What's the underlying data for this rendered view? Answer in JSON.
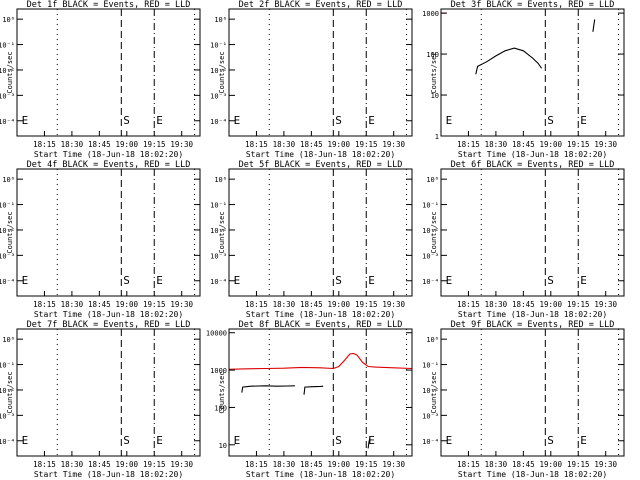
{
  "colors": {
    "events": "#000000",
    "lld": "#dd0000",
    "background": "#ffffff",
    "axis": "#000000"
  },
  "figure": {
    "start_time_label": "Start Time (18-Jun-18 18:02:20)"
  },
  "chart_data": [
    {
      "type": "line",
      "title": "Det 1f BLACK = Events, RED = LLD",
      "xlabel": "Start Time (18-Jun-18 18:02:20)",
      "ylabel": "Counts/sec",
      "y_scale": "log",
      "y_tick_labels": [
        "10⁻⁴",
        "10⁻³",
        "10⁻²",
        "10⁻¹",
        "10⁰"
      ],
      "ylim": [
        -4.6,
        0.4
      ],
      "x_tick_labels": [
        "18:15",
        "18:30",
        "18:45",
        "19:00",
        "19:15",
        "19:30"
      ],
      "x_ticks_min": [
        15,
        30,
        45,
        60,
        75,
        90
      ],
      "xlim": [
        0,
        100
      ],
      "markers": [
        {
          "t": 2,
          "style": "none",
          "text": "E"
        },
        {
          "t": 22,
          "style": "dot"
        },
        {
          "t": 57,
          "style": "dash",
          "text": "S"
        },
        {
          "t": 75,
          "style": "dashdot",
          "text": "E"
        },
        {
          "t": 97,
          "style": "dot"
        }
      ],
      "series": []
    },
    {
      "type": "line",
      "title": "Det 2f BLACK = Events, RED = LLD",
      "xlabel": "Start Time (18-Jun-18 18:02:20)",
      "ylabel": "Counts/sec",
      "y_scale": "log",
      "y_tick_labels": [
        "10⁻⁴",
        "10⁻³",
        "10⁻²",
        "10⁻¹",
        "10⁰"
      ],
      "ylim": [
        -4.6,
        0.4
      ],
      "x_tick_labels": [
        "18:15",
        "18:30",
        "18:45",
        "19:00",
        "19:15",
        "19:30"
      ],
      "x_ticks_min": [
        15,
        30,
        45,
        60,
        75,
        90
      ],
      "xlim": [
        0,
        100
      ],
      "markers": [
        {
          "t": 2,
          "style": "none",
          "text": "E"
        },
        {
          "t": 22,
          "style": "dot"
        },
        {
          "t": 57,
          "style": "dash",
          "text": "S"
        },
        {
          "t": 75,
          "style": "dashdot",
          "text": "E"
        },
        {
          "t": 97,
          "style": "dot"
        }
      ],
      "series": []
    },
    {
      "type": "line",
      "title": "Det 3f BLACK = Events, RED = LLD",
      "xlabel": "Start Time (18-Jun-18 18:02:20)",
      "ylabel": "Counts/sec",
      "y_scale": "log",
      "y_tick_labels": [
        "1000",
        "100",
        "10",
        "1"
      ],
      "ylim": [
        0,
        3.1
      ],
      "x_tick_labels": [
        "18:15",
        "18:30",
        "18:45",
        "19:00",
        "19:15",
        "19:30"
      ],
      "x_ticks_min": [
        15,
        30,
        45,
        60,
        75,
        90
      ],
      "xlim": [
        0,
        100
      ],
      "markers": [
        {
          "t": 2,
          "style": "none",
          "text": "E"
        },
        {
          "t": 22,
          "style": "dot"
        },
        {
          "t": 57,
          "style": "dash",
          "text": "S"
        },
        {
          "t": 75,
          "style": "dashdot",
          "text": "E"
        },
        {
          "t": 97,
          "style": "dot"
        }
      ],
      "series": [
        {
          "color": "black",
          "x": [
            19,
            20,
            25,
            30,
            35,
            40,
            45,
            50,
            53,
            55
          ],
          "y": [
            32,
            50,
            65,
            90,
            120,
            140,
            120,
            80,
            60,
            45
          ]
        },
        {
          "color": "black",
          "x": [
            83,
            83.5,
            84
          ],
          "y": [
            350,
            500,
            700
          ]
        },
        {
          "color": "red",
          "x": [
            0,
            2.5
          ],
          "y": [
            1000,
            1000
          ]
        }
      ]
    },
    {
      "type": "line",
      "title": "Det 4f BLACK = Events, RED = LLD",
      "xlabel": "Start Time (18-Jun-18 18:02:20)",
      "ylabel": "Counts/sec",
      "y_scale": "log",
      "y_tick_labels": [
        "10⁻⁴",
        "10⁻³",
        "10⁻²",
        "10⁻¹",
        "10⁰"
      ],
      "ylim": [
        -4.6,
        0.4
      ],
      "x_tick_labels": [
        "18:15",
        "18:30",
        "18:45",
        "19:00",
        "19:15",
        "19:30"
      ],
      "x_ticks_min": [
        15,
        30,
        45,
        60,
        75,
        90
      ],
      "xlim": [
        0,
        100
      ],
      "markers": [
        {
          "t": 2,
          "style": "none",
          "text": "E"
        },
        {
          "t": 22,
          "style": "dot"
        },
        {
          "t": 57,
          "style": "dash",
          "text": "S"
        },
        {
          "t": 75,
          "style": "dashdot",
          "text": "E"
        },
        {
          "t": 97,
          "style": "dot"
        }
      ],
      "series": []
    },
    {
      "type": "line",
      "title": "Det 5f BLACK = Events, RED = LLD",
      "xlabel": "Start Time (18-Jun-18 18:02:20)",
      "ylabel": "Counts/sec",
      "y_scale": "log",
      "y_tick_labels": [
        "10⁻⁴",
        "10⁻³",
        "10⁻²",
        "10⁻¹",
        "10⁰"
      ],
      "ylim": [
        -4.6,
        0.4
      ],
      "x_tick_labels": [
        "18:15",
        "18:30",
        "18:45",
        "19:00",
        "19:15",
        "19:30"
      ],
      "x_ticks_min": [
        15,
        30,
        45,
        60,
        75,
        90
      ],
      "xlim": [
        0,
        100
      ],
      "markers": [
        {
          "t": 2,
          "style": "none",
          "text": "E"
        },
        {
          "t": 22,
          "style": "dot"
        },
        {
          "t": 57,
          "style": "dash",
          "text": "S"
        },
        {
          "t": 75,
          "style": "dashdot",
          "text": "E"
        },
        {
          "t": 97,
          "style": "dot"
        }
      ],
      "series": []
    },
    {
      "type": "line",
      "title": "Det 6f BLACK = Events, RED = LLD",
      "xlabel": "Start Time (18-Jun-18 18:02:20)",
      "ylabel": "Counts/sec",
      "y_scale": "log",
      "y_tick_labels": [
        "10⁻⁴",
        "10⁻³",
        "10⁻²",
        "10⁻¹",
        "10⁰"
      ],
      "ylim": [
        -4.6,
        0.4
      ],
      "x_tick_labels": [
        "18:15",
        "18:30",
        "18:45",
        "19:00",
        "19:15",
        "19:30"
      ],
      "x_ticks_min": [
        15,
        30,
        45,
        60,
        75,
        90
      ],
      "xlim": [
        0,
        100
      ],
      "markers": [
        {
          "t": 2,
          "style": "none",
          "text": "E"
        },
        {
          "t": 22,
          "style": "dot"
        },
        {
          "t": 57,
          "style": "dash",
          "text": "S"
        },
        {
          "t": 75,
          "style": "dashdot",
          "text": "E"
        },
        {
          "t": 97,
          "style": "dot"
        }
      ],
      "series": []
    },
    {
      "type": "line",
      "title": "Det 7f BLACK = Events, RED = LLD",
      "xlabel": "Start Time (18-Jun-18 18:02:20)",
      "ylabel": "Counts/sec",
      "y_scale": "log",
      "y_tick_labels": [
        "10⁻⁴",
        "10⁻³",
        "10⁻²",
        "10⁻¹",
        "10⁰"
      ],
      "ylim": [
        -4.6,
        0.4
      ],
      "x_tick_labels": [
        "18:15",
        "18:30",
        "18:45",
        "19:00",
        "19:15",
        "19:30"
      ],
      "x_ticks_min": [
        15,
        30,
        45,
        60,
        75,
        90
      ],
      "xlim": [
        0,
        100
      ],
      "markers": [
        {
          "t": 2,
          "style": "none",
          "text": "E"
        },
        {
          "t": 22,
          "style": "dot"
        },
        {
          "t": 57,
          "style": "dash",
          "text": "S"
        },
        {
          "t": 75,
          "style": "dashdot",
          "text": "E"
        },
        {
          "t": 97,
          "style": "dot"
        }
      ],
      "series": []
    },
    {
      "type": "line",
      "title": "Det 8f BLACK = Events, RED = LLD",
      "xlabel": "Start Time (18-Jun-18 18:02:20)",
      "ylabel": "Counts/sec",
      "y_scale": "log",
      "y_tick_labels": [
        "10000",
        "1000",
        "100",
        "10"
      ],
      "ylim": [
        0.7,
        4.1
      ],
      "x_tick_labels": [
        "18:15",
        "18:30",
        "18:45",
        "19:00",
        "19:15",
        "19:30"
      ],
      "x_ticks_min": [
        15,
        30,
        45,
        60,
        75,
        90
      ],
      "xlim": [
        0,
        100
      ],
      "markers": [
        {
          "t": 2,
          "style": "none",
          "text": "E"
        },
        {
          "t": 22,
          "style": "dot"
        },
        {
          "t": 57,
          "style": "dash",
          "text": "S"
        },
        {
          "t": 75,
          "style": "dashdot",
          "text": "E"
        },
        {
          "t": 97,
          "style": "dot"
        }
      ],
      "series": [
        {
          "color": "red",
          "x": [
            0,
            10,
            20,
            30,
            40,
            50,
            57,
            60,
            63,
            66,
            68,
            70,
            73,
            76,
            80,
            90,
            100
          ],
          "y": [
            1050,
            1080,
            1100,
            1120,
            1180,
            1150,
            1100,
            1250,
            1800,
            2700,
            2800,
            2500,
            1600,
            1250,
            1200,
            1150,
            1100
          ]
        },
        {
          "color": "black",
          "x": [
            7,
            7.5,
            12,
            20,
            26,
            32,
            36
          ],
          "y": [
            250,
            350,
            370,
            380,
            370,
            375,
            380
          ]
        },
        {
          "color": "black",
          "x": [
            41,
            41.5,
            46,
            50,
            51.5
          ],
          "y": [
            220,
            350,
            360,
            365,
            370
          ]
        },
        {
          "color": "black",
          "x": [
            76,
            76.5,
            77
          ],
          "y": [
            8,
            12,
            15
          ]
        }
      ]
    },
    {
      "type": "line",
      "title": "Det 9f BLACK = Events, RED = LLD",
      "xlabel": "Start Time (18-Jun-18 18:02:20)",
      "ylabel": "Counts/sec",
      "y_scale": "log",
      "y_tick_labels": [
        "10⁻⁴",
        "10⁻³",
        "10⁻²",
        "10⁻¹",
        "10⁰"
      ],
      "ylim": [
        -4.6,
        0.4
      ],
      "x_tick_labels": [
        "18:15",
        "18:30",
        "18:45",
        "19:00",
        "19:15",
        "19:30"
      ],
      "x_ticks_min": [
        15,
        30,
        45,
        60,
        75,
        90
      ],
      "xlim": [
        0,
        100
      ],
      "markers": [
        {
          "t": 2,
          "style": "none",
          "text": "E"
        },
        {
          "t": 22,
          "style": "dot"
        },
        {
          "t": 57,
          "style": "dash",
          "text": "S"
        },
        {
          "t": 75,
          "style": "dashdot",
          "text": "E"
        },
        {
          "t": 97,
          "style": "dot"
        }
      ],
      "series": []
    }
  ]
}
